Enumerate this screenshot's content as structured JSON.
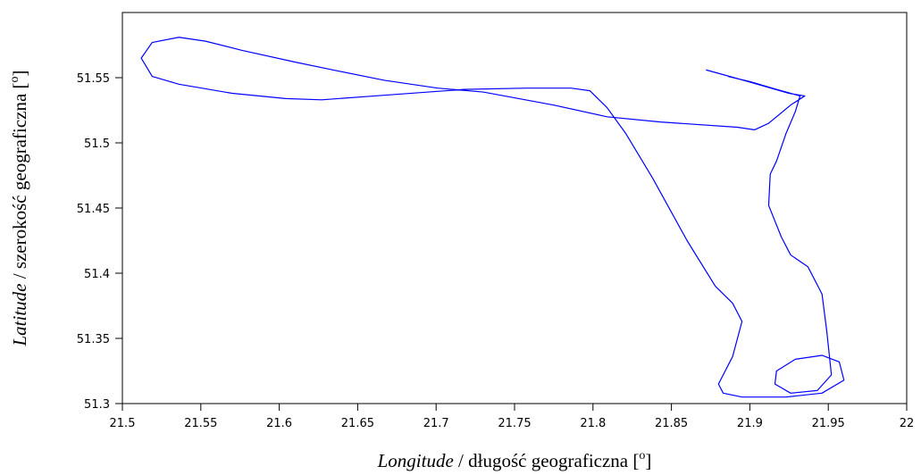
{
  "chart_data": {
    "type": "line",
    "x_label": {
      "italic": "Longitude",
      "text": " / długość geograficzna [",
      "sup": "o",
      "end": "]"
    },
    "y_label": {
      "italic": "Latitude",
      "text": " / szerokość geograficzna [",
      "sup": "o",
      "end": "]"
    },
    "xlim": [
      21.5,
      22
    ],
    "ylim": [
      51.3,
      51.6
    ],
    "xticks": [
      21.5,
      21.55,
      21.6,
      21.65,
      21.7,
      21.75,
      21.8,
      21.85,
      21.9,
      21.95,
      22
    ],
    "yticks": [
      51.3,
      51.35,
      51.4,
      51.45,
      51.5,
      51.55
    ],
    "series": [
      {
        "color": "#0000ff",
        "x": [
          21.872,
          21.899,
          21.925,
          21.935,
          21.926,
          21.912,
          21.903,
          21.892,
          21.843,
          21.809,
          21.775,
          21.73,
          21.701,
          21.667,
          21.638,
          21.61,
          21.576,
          21.553,
          21.536,
          21.519,
          21.512,
          21.519,
          21.536,
          21.57,
          21.604,
          21.627,
          21.661,
          21.695,
          21.718,
          21.758,
          21.786,
          21.798,
          21.809,
          21.821,
          21.838,
          21.86,
          21.878,
          21.889,
          21.895,
          21.889,
          21.88,
          21.883,
          21.895,
          21.923,
          21.946,
          21.96,
          21.957,
          21.946,
          21.929,
          21.917,
          21.916,
          21.926,
          21.943,
          21.952,
          21.949,
          21.946,
          21.937,
          21.926,
          21.92,
          21.912,
          21.913,
          21.917,
          21.923,
          21.929,
          21.932,
          21.917,
          21.9,
          21.886
        ],
        "values": [
          51.556,
          51.547,
          51.538,
          51.536,
          51.529,
          51.515,
          51.51,
          51.512,
          51.516,
          51.52,
          51.529,
          51.539,
          51.542,
          51.548,
          51.555,
          51.562,
          51.571,
          51.578,
          51.581,
          51.577,
          51.565,
          51.551,
          51.545,
          51.538,
          51.534,
          51.533,
          51.536,
          51.539,
          51.541,
          51.542,
          51.542,
          51.54,
          51.527,
          51.507,
          51.473,
          51.425,
          51.39,
          51.377,
          51.363,
          51.336,
          51.315,
          51.308,
          51.305,
          51.305,
          51.308,
          51.318,
          51.332,
          51.337,
          51.334,
          51.325,
          51.315,
          51.308,
          51.31,
          51.322,
          51.356,
          51.384,
          51.405,
          51.414,
          51.428,
          51.452,
          51.476,
          51.486,
          51.507,
          51.524,
          51.536,
          51.541,
          51.547,
          51.551
        ]
      }
    ]
  }
}
